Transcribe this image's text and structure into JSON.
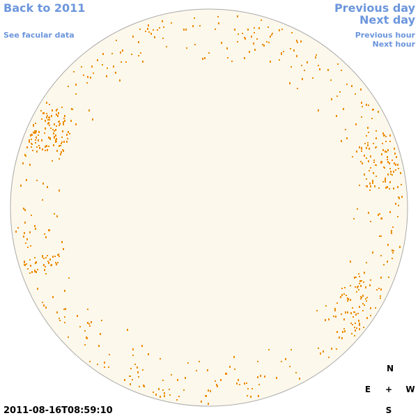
{
  "nav": {
    "back": "Back to 2011",
    "facular": "See facular data",
    "prev_day": "Previous day",
    "next_day": "Next day",
    "prev_hour": "Previous hour",
    "next_hour": "Next hour"
  },
  "timestamp": "2011-08-16T08:59:10",
  "compass": {
    "north": "N",
    "east": "E",
    "center": "+",
    "west": "W",
    "south": "S"
  }
}
